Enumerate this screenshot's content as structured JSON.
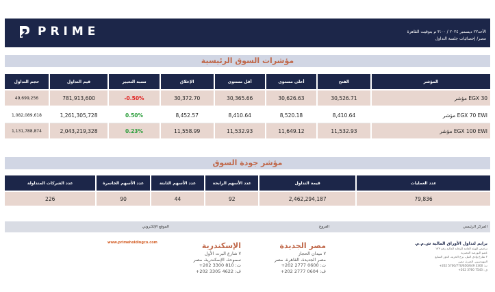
{
  "header": {
    "brand": "PRIME",
    "date_line": "الأحد٢٢ ديسمبر ٢٠٢٤ / ٣:٠٠ م بتوقيت القاهرة",
    "sub_line": "مصر/ إحصائيات جلسة التداول"
  },
  "main_indices": {
    "title": "مؤشرات السوق الرئيسية",
    "headers": [
      "حجم التداول",
      "قيم التداول",
      "نسبة التغيير",
      "الإغلاق",
      "أقل مستوى",
      "أعلى مستوى",
      "الفتح",
      "المؤشر"
    ],
    "rows": [
      {
        "volume": "49,699,256",
        "value": "781,913,600",
        "change": "-0.50%",
        "close": "30,372.70",
        "low": "30,365.66",
        "high": "30,626.63",
        "open": "30,526.71",
        "index": "مؤشر EGX 30"
      },
      {
        "volume": "1,082,089,618",
        "value": "1,261,305,728",
        "change": "0.50%",
        "close": "8,452.57",
        "low": "8,410.64",
        "high": "8,520.18",
        "open": "8,410.64",
        "index": "مؤشر EGX 70 EWI"
      },
      {
        "volume": "1,131,788,874",
        "value": "2,043,219,328",
        "change": "0.23%",
        "close": "11,558.99",
        "low": "11,532.93",
        "high": "11,649.12",
        "open": "11,532.93",
        "index": "مؤشر EGX 100 EWI"
      }
    ]
  },
  "market_quality": {
    "title": "مؤشر جودة السوق",
    "headers": [
      "عدد الشركات المتداولة",
      "عدد الأسهم الخاسرة",
      "عدد الأسهم الثابتة",
      "عدد الأسهم الرابحة",
      "قيمة التداول",
      "عدد العمليات"
    ],
    "row": {
      "traded": "226",
      "losers": "90",
      "unchanged": "44",
      "gainers": "92",
      "value": "2,462,294,187",
      "trades": "79,836"
    }
  },
  "footer": {
    "website_label": "الموقع الإلكتروني",
    "website": "www.primeholdingco.com",
    "branches_label": "الفروع",
    "hq_label": "المركز الرئيسي",
    "alex": {
      "city": "الإسكندرية",
      "line1": "٧ شارع البرت الأول",
      "line2": "سموحة، الإسكندرية، مصر",
      "tel": "ت: 810 3300 202+",
      "fax": "ف: 4622 3305 202+"
    },
    "cairo": {
      "city": "مصر الجديدة",
      "line1": "٧ ميدان الحجاز",
      "line2": "مصر الجديدة، القاهرة، مصر",
      "tel": "ت: 0600 2777 202+",
      "fax": "ف: 0604 2777 202+"
    },
    "hq": {
      "company": "برايم لتداول الأوراق المالية ش.م.م.",
      "l1": "ترخيص الهيئة العامة للرقابة المالية رقم ١٧٣",
      "l2": "عضو البورصة المصرية",
      "l3": "٢ شارع وادي النيل، برج الحرية، الدور السابع",
      "l4": "المهندسين، الجيزة، مصر",
      "tel": "ت: 3300 5700/770/650/649 202+",
      "fax": "ف: 7543 3760 202+"
    }
  }
}
